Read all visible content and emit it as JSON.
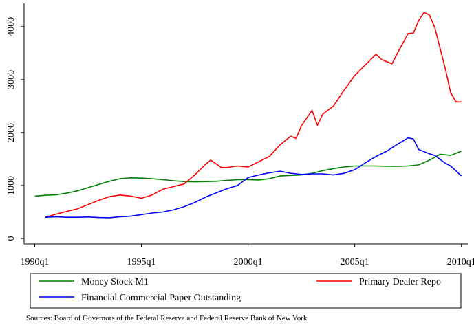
{
  "chart_data": {
    "type": "line",
    "source": "Sources: Board of Governors of the Federal Reserve and Federal Reserve Bank of New York",
    "xlim": [
      1989.5,
      2010.3
    ],
    "ylim": [
      -104,
      4440
    ],
    "xticks": [
      {
        "value": 1990,
        "label": "1990q1"
      },
      {
        "value": 1995,
        "label": "1995q1"
      },
      {
        "value": 2000,
        "label": "2000q1"
      },
      {
        "value": 2005,
        "label": "2005q1"
      },
      {
        "value": 2010,
        "label": "2010q1"
      }
    ],
    "yticks": [
      0,
      1000,
      2000,
      3000,
      4000
    ],
    "series": [
      {
        "name": "Money Stock M1",
        "color": "#008000",
        "x": [
          1990,
          1990.5,
          1991,
          1991.5,
          1992,
          1992.5,
          1993,
          1993.5,
          1994,
          1994.5,
          1995,
          1995.5,
          1996,
          1996.5,
          1997,
          1997.5,
          1998,
          1998.5,
          1999,
          1999.5,
          2000,
          2000.5,
          2001,
          2001.5,
          2002,
          2002.5,
          2003,
          2003.5,
          2004,
          2004.5,
          2005,
          2005.5,
          2006,
          2006.5,
          2007,
          2007.5,
          2008,
          2008.5,
          2009,
          2009.5,
          2010
        ],
        "values": [
          800,
          815,
          825,
          855,
          900,
          960,
          1020,
          1080,
          1130,
          1145,
          1140,
          1130,
          1110,
          1090,
          1075,
          1070,
          1075,
          1080,
          1095,
          1110,
          1110,
          1105,
          1130,
          1180,
          1190,
          1200,
          1230,
          1280,
          1320,
          1350,
          1370,
          1370,
          1370,
          1365,
          1365,
          1370,
          1390,
          1480,
          1590,
          1570,
          1650
        ]
      },
      {
        "name": "Primary Dealer Repo",
        "color": "#ff0000",
        "x": [
          1990.5,
          1991,
          1991.5,
          1992,
          1992.5,
          1993,
          1993.5,
          1994,
          1994.5,
          1995,
          1995.5,
          1996,
          1996.5,
          1997,
          1997.5,
          1998,
          1998.25,
          1998.75,
          1999,
          1999.5,
          2000,
          2000.5,
          2001,
          2001.5,
          2002,
          2002.25,
          2002.5,
          2003,
          2003.25,
          2003.5,
          2004,
          2004.5,
          2005,
          2005.5,
          2006,
          2006.25,
          2006.75,
          2007,
          2007.5,
          2007.75,
          2008,
          2008.25,
          2008.5,
          2008.75,
          2009.25,
          2009.5,
          2009.75,
          2010
        ],
        "values": [
          400,
          460,
          510,
          560,
          640,
          720,
          790,
          820,
          800,
          760,
          820,
          930,
          980,
          1030,
          1200,
          1400,
          1480,
          1340,
          1340,
          1370,
          1350,
          1450,
          1550,
          1770,
          1930,
          1890,
          2130,
          2420,
          2140,
          2350,
          2500,
          2800,
          3080,
          3280,
          3480,
          3380,
          3300,
          3500,
          3870,
          3880,
          4120,
          4270,
          4220,
          3990,
          3200,
          2750,
          2580,
          2580
        ]
      },
      {
        "name": "Financial Commercial Paper Outstanding",
        "color": "#0000ff",
        "x": [
          1990.5,
          1991,
          1991.5,
          1992,
          1992.5,
          1993,
          1993.5,
          1994,
          1994.5,
          1995,
          1995.5,
          1996,
          1996.5,
          1997,
          1997.5,
          1998,
          1998.5,
          1999,
          1999.5,
          2000,
          2000.5,
          2001,
          2001.5,
          2002,
          2002.5,
          2003,
          2003.5,
          2004,
          2004.5,
          2005,
          2005.5,
          2006,
          2006.5,
          2007,
          2007.5,
          2007.75,
          2008,
          2008.5,
          2008.75,
          2009.25,
          2009.5,
          2010
        ],
        "values": [
          400,
          410,
          400,
          400,
          405,
          395,
          390,
          410,
          420,
          450,
          480,
          500,
          540,
          600,
          680,
          780,
          860,
          940,
          1000,
          1150,
          1200,
          1240,
          1270,
          1230,
          1210,
          1220,
          1220,
          1200,
          1230,
          1300,
          1430,
          1550,
          1650,
          1780,
          1900,
          1880,
          1680,
          1600,
          1570,
          1420,
          1370,
          1180
        ]
      }
    ]
  }
}
